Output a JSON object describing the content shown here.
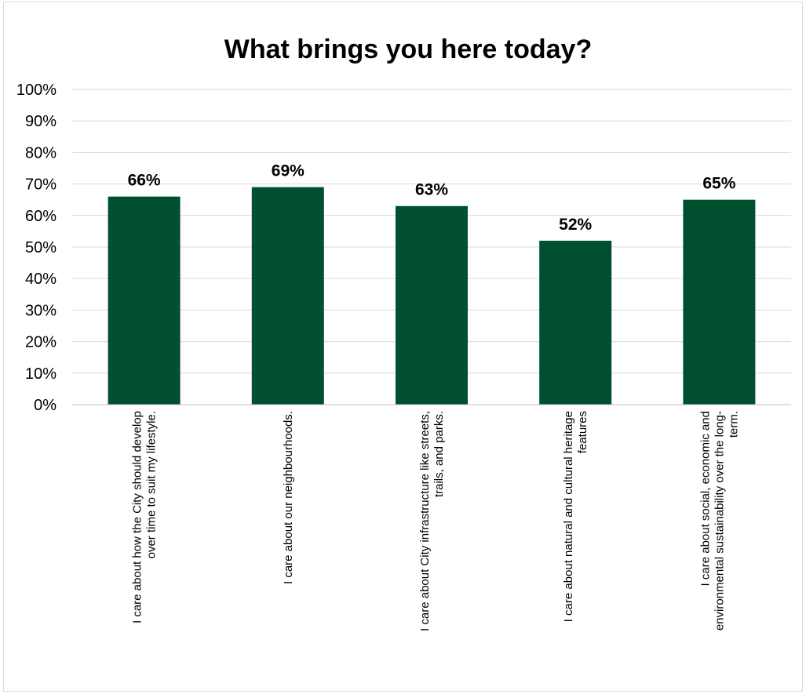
{
  "chart_data": {
    "type": "bar",
    "title": "What brings you here today?",
    "xlabel": "",
    "ylabel": "",
    "ylim": [
      0,
      100
    ],
    "y_ticks": [
      "0%",
      "10%",
      "20%",
      "30%",
      "40%",
      "50%",
      "60%",
      "70%",
      "80%",
      "90%",
      "100%"
    ],
    "grid": true,
    "legend": "none",
    "bar_color": "#005030",
    "categories": [
      {
        "label": "I care about how the City should develop over time to suit my lifestyle.",
        "lines": [
          "I care about how the City should develop",
          "over time to suit my lifestyle."
        ]
      },
      {
        "label": "I care about our neighbourhoods.",
        "lines": [
          "I care about our neighbourhoods."
        ]
      },
      {
        "label": "I care about City infrastructure like streets, trails, and parks.",
        "lines": [
          "I care about City infrastructure like streets,",
          "trails, and parks."
        ]
      },
      {
        "label": "I care about natural and cultural heritage features",
        "lines": [
          "I care about natural and cultural heritage",
          "features"
        ]
      },
      {
        "label": "I care about social, economic and environmental sustainability over the long-term.",
        "lines": [
          "I care about social, economic and",
          "environmental sustainability over the long-",
          "term."
        ]
      }
    ],
    "values": [
      66,
      69,
      63,
      52,
      65
    ],
    "data_labels": [
      "66%",
      "69%",
      "63%",
      "52%",
      "65%"
    ]
  }
}
